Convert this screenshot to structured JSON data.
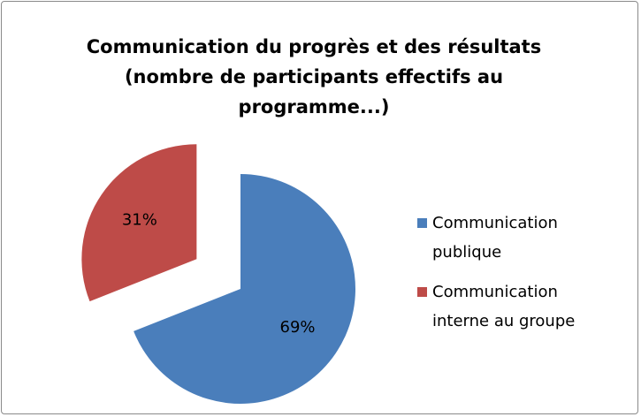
{
  "chart_data": {
    "type": "pie",
    "title": "Communication du progrès et des résultats (nombre de participants effectifs au programme...)",
    "categories": [
      "Communication publique",
      "Communication interne au groupe"
    ],
    "values": [
      69,
      31
    ],
    "value_labels": [
      "69%",
      "31%"
    ],
    "colors": [
      "#4a7ebb",
      "#be4b48"
    ],
    "legend": "right"
  }
}
